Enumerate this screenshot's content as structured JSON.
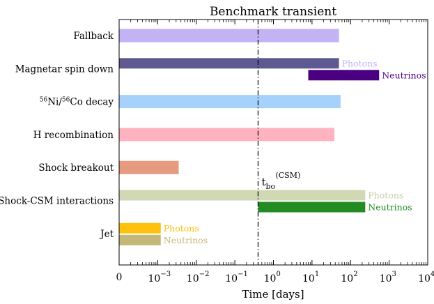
{
  "chart_data": {
    "type": "bar",
    "title": "Benchmark transient",
    "xlabel": "Time [days]",
    "xscale": "log",
    "xlim": [
      0.0001,
      10000
    ],
    "xtick_labels": [
      {
        "value": 0.0001,
        "label": "0"
      },
      {
        "value": 0.001,
        "base": "10",
        "exp": "−3"
      },
      {
        "value": 0.01,
        "base": "10",
        "exp": "−2"
      },
      {
        "value": 0.1,
        "base": "10",
        "exp": "−1"
      },
      {
        "value": 1,
        "base": "10",
        "exp": "0"
      },
      {
        "value": 10,
        "base": "10",
        "exp": "1"
      },
      {
        "value": 100,
        "base": "10",
        "exp": "2"
      },
      {
        "value": 1000,
        "base": "10",
        "exp": "3"
      },
      {
        "value": 10000,
        "base": "10",
        "exp": "4"
      }
    ],
    "categories": [
      {
        "label": "Fallback"
      },
      {
        "label": "Magnetar spin down"
      },
      {
        "label": "Ni/Co decay",
        "parts": [
          {
            "t": "sup",
            "v": "56"
          },
          {
            "t": "txt",
            "v": "Ni/"
          },
          {
            "t": "sup",
            "v": "56"
          },
          {
            "t": "txt",
            "v": "Co decay"
          }
        ]
      },
      {
        "label": "H recombination"
      },
      {
        "label": "Shock breakout"
      },
      {
        "label": "Shock-CSM interactions"
      },
      {
        "label": "Jet"
      }
    ],
    "bars": [
      {
        "row": 0,
        "sub": "full",
        "start": 0.0001,
        "end": 50,
        "color": "#c3b3f5"
      },
      {
        "row": 1,
        "sub": "top",
        "start": 0.0001,
        "end": 50,
        "color": "#5e5991",
        "label": "Photons",
        "label_color": "#c3b3f5"
      },
      {
        "row": 1,
        "sub": "bottom",
        "start": 8,
        "end": 550,
        "color": "#4b0082",
        "label": "Neutrinos",
        "label_color": "#4b0082"
      },
      {
        "row": 2,
        "sub": "full",
        "start": 0.0001,
        "end": 55,
        "color": "#a6d1fb"
      },
      {
        "row": 3,
        "sub": "full",
        "start": 0.0001,
        "end": 38,
        "color": "#ffb3c0"
      },
      {
        "row": 4,
        "sub": "full",
        "start": 0.0001,
        "end": 0.0035,
        "color": "#e69a80"
      },
      {
        "row": 5,
        "sub": "top",
        "start": 0.0001,
        "end": 240,
        "color": "#d0d9b3",
        "label": "Photons",
        "label_color": "#c9cdaa"
      },
      {
        "row": 5,
        "sub": "bottom",
        "start": 0.4,
        "end": 240,
        "color": "#238b22",
        "label": "Neutrinos",
        "label_color": "#238b22"
      },
      {
        "row": 6,
        "sub": "top",
        "start": 0.0001,
        "end": 0.0012,
        "color": "#fec10e",
        "label": "Photons",
        "label_color": "#fec10e"
      },
      {
        "row": 6,
        "sub": "bottom",
        "start": 0.0001,
        "end": 0.0012,
        "color": "#c3b878",
        "label": "Neutrinos",
        "label_color": "#c3b878"
      }
    ],
    "vline": {
      "x": 0.4,
      "label_main": "t",
      "label_sub": "bo",
      "label_sup": "(CSM)"
    }
  }
}
